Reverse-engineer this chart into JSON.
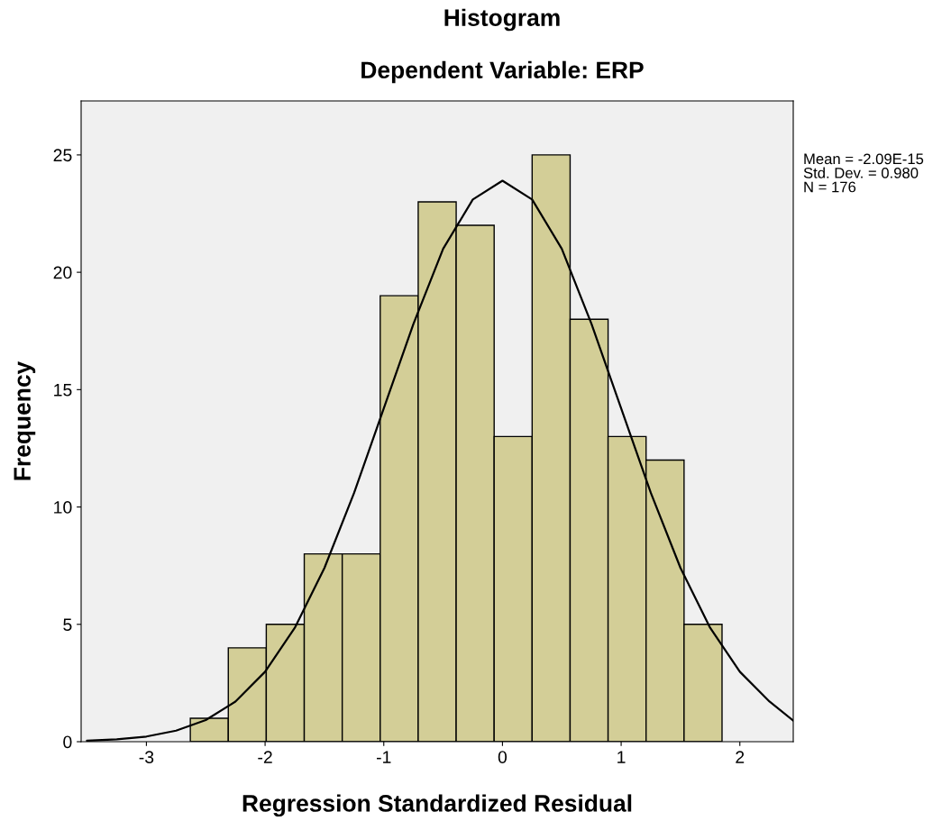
{
  "chart_data": {
    "type": "histogram",
    "title": "Histogram",
    "subtitle": "Dependent Variable: ERP",
    "xlabel": "Regression Standardized Residual",
    "ylabel": "Frequency",
    "bins": [
      -2.63,
      -2.31,
      -1.99,
      -1.67,
      -1.35,
      -1.03,
      -0.71,
      -0.39,
      -0.07,
      0.25,
      0.57,
      0.89,
      1.21,
      1.53,
      1.85
    ],
    "values": [
      1,
      4,
      5,
      8,
      8,
      19,
      23,
      22,
      13,
      25,
      18,
      13,
      12,
      5
    ],
    "color": "#d3ce97",
    "series": [
      {
        "type": "line",
        "color": "#000000",
        "x": [
          -3.5,
          -3.25,
          -3,
          -2.75,
          -2.5,
          -2.25,
          -2,
          -1.75,
          -1.5,
          -1.25,
          -1,
          -0.75,
          -0.5,
          -0.25,
          0,
          0.25,
          0.5,
          0.75,
          1,
          1.25,
          1.5,
          1.75,
          2,
          2.25,
          2.45
        ],
        "values": [
          0.04,
          0.1,
          0.22,
          0.47,
          0.92,
          1.71,
          2.98,
          4.85,
          7.4,
          10.6,
          14.2,
          17.8,
          21,
          23.1,
          23.9,
          23.1,
          21,
          17.8,
          14.2,
          10.6,
          7.4,
          4.85,
          2.98,
          1.71,
          0.9
        ]
      }
    ],
    "xlim": [
      -3.55,
      2.45
    ],
    "xticks": [
      -3,
      -2,
      -1,
      0,
      1,
      2
    ],
    "ylim": [
      0,
      27.3
    ],
    "yticks": [
      0,
      5,
      10,
      15,
      20,
      25
    ],
    "grid": false,
    "annotations": [
      "Mean = -2.09E-15\nStd. Dev. = 0.980\nN = 176"
    ]
  }
}
